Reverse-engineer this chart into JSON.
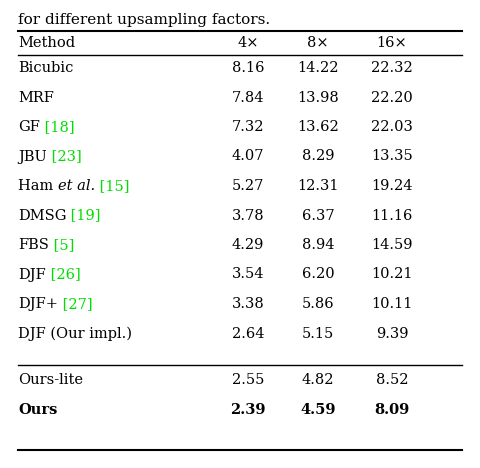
{
  "caption": "for different upsampling factors.",
  "headers": [
    "Method",
    "4×",
    "8×",
    "16×"
  ],
  "rows": [
    {
      "method": "Bicubic",
      "ref": null,
      "vals": [
        "8.16",
        "14.22",
        "22.32"
      ],
      "italic_et_al": false
    },
    {
      "method": "MRF",
      "ref": null,
      "vals": [
        "7.84",
        "13.98",
        "22.20"
      ],
      "italic_et_al": false
    },
    {
      "method": "GF",
      "ref": "18",
      "vals": [
        "7.32",
        "13.62",
        "22.03"
      ],
      "italic_et_al": false
    },
    {
      "method": "JBU",
      "ref": "23",
      "vals": [
        "4.07",
        "8.29",
        "13.35"
      ],
      "italic_et_al": false
    },
    {
      "method": "Ham et al.",
      "ref": "15",
      "vals": [
        "5.27",
        "12.31",
        "19.24"
      ],
      "italic_et_al": true
    },
    {
      "method": "DMSG",
      "ref": "19",
      "vals": [
        "3.78",
        "6.37",
        "11.16"
      ],
      "italic_et_al": false
    },
    {
      "method": "FBS",
      "ref": "5",
      "vals": [
        "4.29",
        "8.94",
        "14.59"
      ],
      "italic_et_al": false
    },
    {
      "method": "DJF",
      "ref": "26",
      "vals": [
        "3.54",
        "6.20",
        "10.21"
      ],
      "italic_et_al": false
    },
    {
      "method": "DJF+",
      "ref": "27",
      "vals": [
        "3.38",
        "5.86",
        "10.11"
      ],
      "italic_et_al": false
    },
    {
      "method": "DJF (Our impl.)",
      "ref": null,
      "vals": [
        "2.64",
        "5.15",
        "9.39"
      ],
      "italic_et_al": false
    }
  ],
  "ours_rows": [
    {
      "method": "Ours-lite",
      "vals": [
        "2.55",
        "4.82",
        "8.52"
      ],
      "bold_vals": false
    },
    {
      "method": "Ours",
      "vals": [
        "2.39",
        "4.59",
        "8.09"
      ],
      "bold_vals": true
    }
  ],
  "ref_color": "#00dd00",
  "text_color": "#000000",
  "bg_color": "#ffffff",
  "fontsize": 10.5
}
